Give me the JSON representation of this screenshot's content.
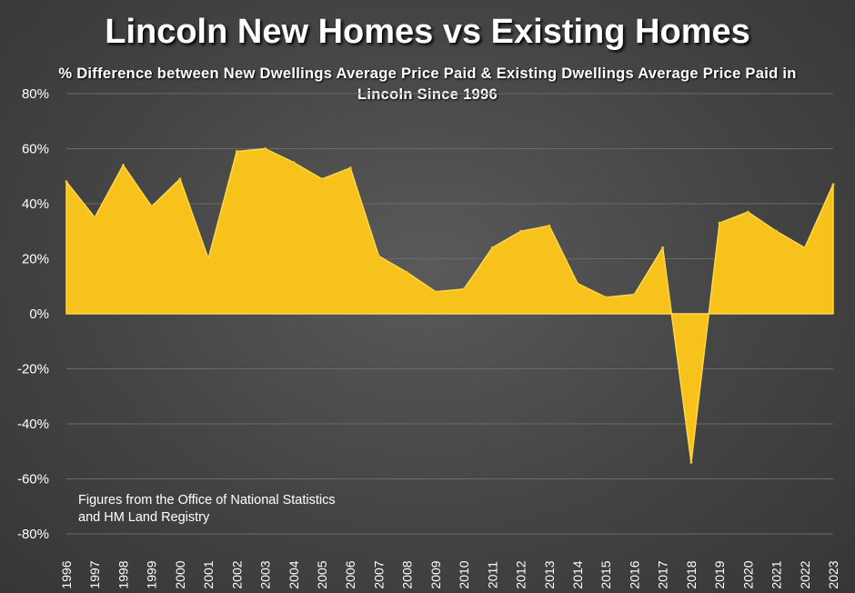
{
  "chart_data": {
    "type": "area",
    "title": "Lincoln New Homes vs Existing Homes",
    "subtitle": "% Difference between New Dwellings Average Price Paid & Existing Dwellings Average Price Paid in Lincoln Since 1996",
    "annotation": "Figures from the Office of National Statistics and HM Land Registry",
    "xlabel": "",
    "ylabel": "",
    "x": [
      "1996",
      "1997",
      "1998",
      "1999",
      "2000",
      "2001",
      "2002",
      "2003",
      "2004",
      "2005",
      "2006",
      "2007",
      "2008",
      "2009",
      "2010",
      "2011",
      "2012",
      "2013",
      "2014",
      "2015",
      "2016",
      "2017",
      "2018",
      "2019",
      "2020",
      "2021",
      "2022",
      "2023"
    ],
    "values": [
      48,
      35,
      54,
      39,
      49,
      20,
      59,
      60,
      55,
      49,
      53,
      21,
      15,
      8,
      9,
      24,
      30,
      32,
      11,
      6,
      7,
      24,
      -54,
      33,
      37,
      30,
      24,
      47
    ],
    "ylim": [
      -80,
      80
    ],
    "yticks": [
      -80,
      -60,
      -40,
      -20,
      0,
      20,
      40,
      60,
      80
    ],
    "ytick_labels": [
      "-80%",
      "-60%",
      "-40%",
      "-20%",
      "0%",
      "20%",
      "40%",
      "60%",
      "80%"
    ],
    "grid": true,
    "fill_color": "#f7c21b",
    "background": "#4a4a4a"
  }
}
